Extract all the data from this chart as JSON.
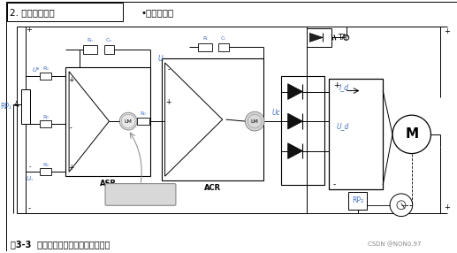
{
  "title_top_left": "2. 系统电路结构",
  "title_top_right": "•系统原理图",
  "caption": "图3-3  双闭环直流调速系统电路原理图",
  "watermark": "CSDN @NON0.97",
  "bg_color": "#ffffff",
  "blk": "#000000",
  "blue": "#4472C4",
  "gray": "#888888",
  "lgray": "#cccccc",
  "dgray": "#555555",
  "fig_w": 5.17,
  "fig_h": 2.86,
  "dpi": 100
}
